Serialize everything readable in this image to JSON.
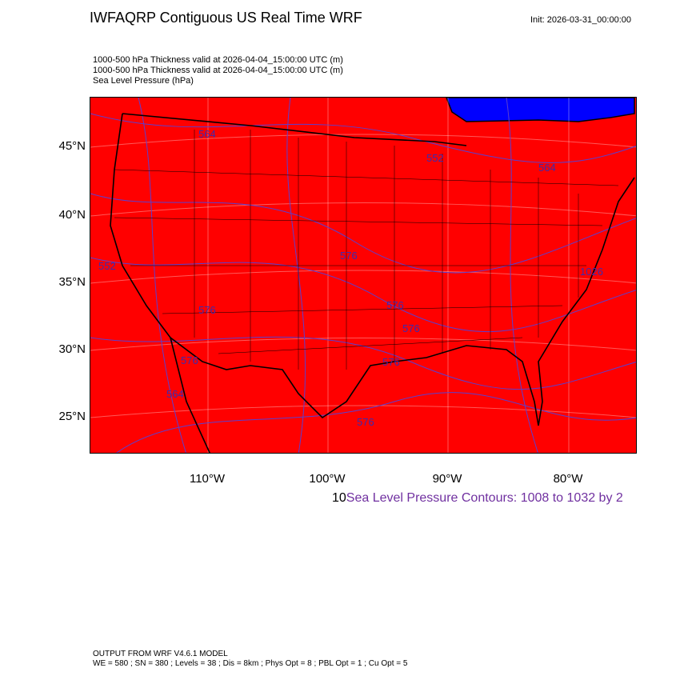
{
  "title": "IWFAQRP Contiguous US Real Time WRF",
  "init": "Init: 2026-03-31_00:00:00",
  "subtitles": [
    "1000-500 hPa Thickness valid at 2026-04-04_15:00:00 UTC   (m)",
    "1000-500 hPa Thickness valid at 2026-04-04_15:00:00 UTC   (m)",
    "Sea Level Pressure   (hPa)"
  ],
  "map": {
    "fill_color": "#ff0000",
    "water_color": "#0000ff",
    "contour_color": "#5a3fd0",
    "lat_labels": [
      "45°N",
      "40°N",
      "35°N",
      "30°N",
      "25°N"
    ],
    "lon_labels": [
      "110°W",
      "100°W",
      "90°W",
      "80°W"
    ],
    "contour_labels": [
      "552",
      "564",
      "576",
      "576",
      "564",
      "552",
      "576",
      "576",
      "576",
      "576",
      "564",
      "576",
      "1026"
    ]
  },
  "legend": {
    "prefix": "10",
    "text": "Sea Level Pressure Contours: 1008 to 1032 by 2",
    "color": "#7030a0"
  },
  "footer": [
    "OUTPUT FROM WRF V4.6.1 MODEL",
    "WE = 580 ; SN = 380 ; Levels = 38 ; Dis = 8km ; Phys Opt = 8 ; PBL Opt = 1 ; Cu Opt = 5"
  ]
}
